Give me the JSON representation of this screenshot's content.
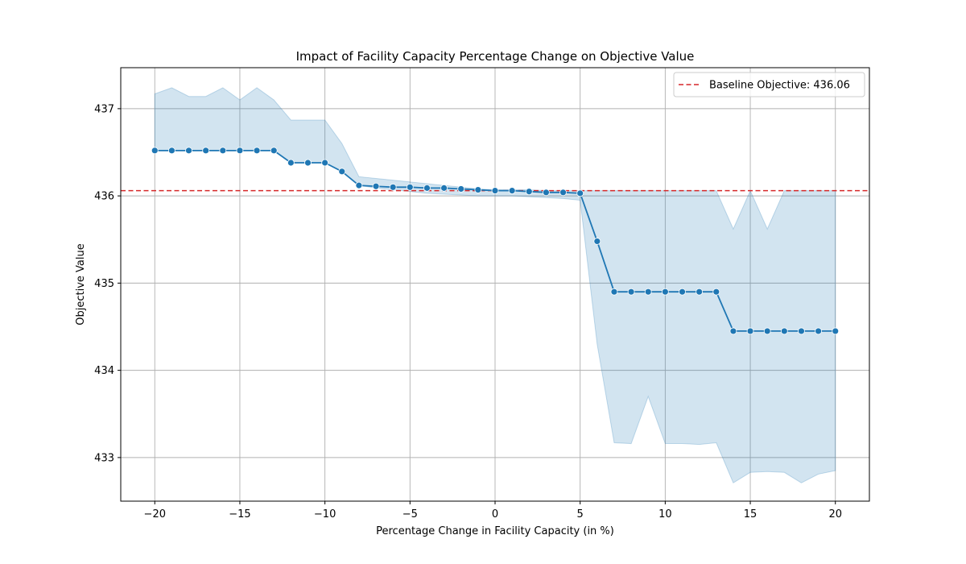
{
  "chart_data": {
    "type": "line",
    "title": "Impact of Facility Capacity Percentage Change on Objective Value",
    "xlabel": "Percentage Change in Facility Capacity (in %)",
    "ylabel": "Objective Value",
    "xlim": [
      -22,
      22
    ],
    "ylim": [
      432.5,
      437.47
    ],
    "x_ticks": [
      -20,
      -15,
      -10,
      -5,
      0,
      5,
      10,
      15,
      20
    ],
    "x_tick_labels": [
      "−20",
      "−15",
      "−10",
      "−5",
      "0",
      "5",
      "10",
      "15",
      "20"
    ],
    "y_ticks": [
      433,
      434,
      435,
      436,
      437
    ],
    "y_tick_labels": [
      "433",
      "434",
      "435",
      "436",
      "437"
    ],
    "grid": true,
    "legend_position": "top-right",
    "line_color": "#1f77b4",
    "band_color": "#1f77b4",
    "baseline_color": "#d62728",
    "series": [
      {
        "x": [
          -20,
          -19,
          -18,
          -17,
          -16,
          -15,
          -14,
          -13,
          -12,
          -11,
          -10,
          -9,
          -8,
          -7,
          -6,
          -5,
          -4,
          -3,
          -2,
          -1,
          0,
          1,
          2,
          3,
          4,
          5,
          6,
          7,
          8,
          9,
          10,
          11,
          12,
          13,
          14,
          15,
          16,
          17,
          18,
          19,
          20
        ],
        "values": [
          436.52,
          436.52,
          436.52,
          436.52,
          436.52,
          436.52,
          436.52,
          436.52,
          436.38,
          436.38,
          436.38,
          436.28,
          436.12,
          436.11,
          436.1,
          436.1,
          436.09,
          436.09,
          436.08,
          436.07,
          436.06,
          436.06,
          436.05,
          436.04,
          436.04,
          436.03,
          435.48,
          434.9,
          434.9,
          434.9,
          434.9,
          434.9,
          434.9,
          434.9,
          434.45,
          434.45,
          434.45,
          434.45,
          434.45,
          434.45,
          434.45
        ],
        "upper": [
          437.17,
          437.24,
          437.14,
          437.14,
          437.24,
          437.1,
          437.24,
          437.1,
          436.87,
          436.87,
          436.87,
          436.6,
          436.22,
          436.2,
          436.18,
          436.16,
          436.14,
          436.12,
          436.1,
          436.08,
          436.07,
          436.07,
          436.07,
          436.06,
          436.06,
          436.06,
          436.06,
          436.06,
          436.06,
          436.06,
          436.06,
          436.06,
          436.06,
          436.06,
          435.62,
          436.06,
          435.62,
          436.06,
          436.06,
          436.06,
          436.06
        ],
        "lower": [
          436.52,
          436.52,
          436.52,
          436.52,
          436.52,
          436.52,
          436.52,
          436.52,
          436.38,
          436.38,
          436.38,
          436.28,
          436.12,
          436.09,
          436.07,
          436.05,
          436.03,
          436.02,
          436.01,
          436.0,
          436.0,
          436.0,
          435.99,
          435.98,
          435.97,
          435.95,
          434.3,
          433.17,
          433.16,
          433.7,
          433.16,
          433.16,
          433.15,
          433.17,
          432.71,
          432.83,
          432.84,
          432.83,
          432.71,
          432.81,
          432.85
        ]
      }
    ],
    "baseline": {
      "value": 436.06,
      "label": "Baseline Objective: 436.06"
    }
  }
}
